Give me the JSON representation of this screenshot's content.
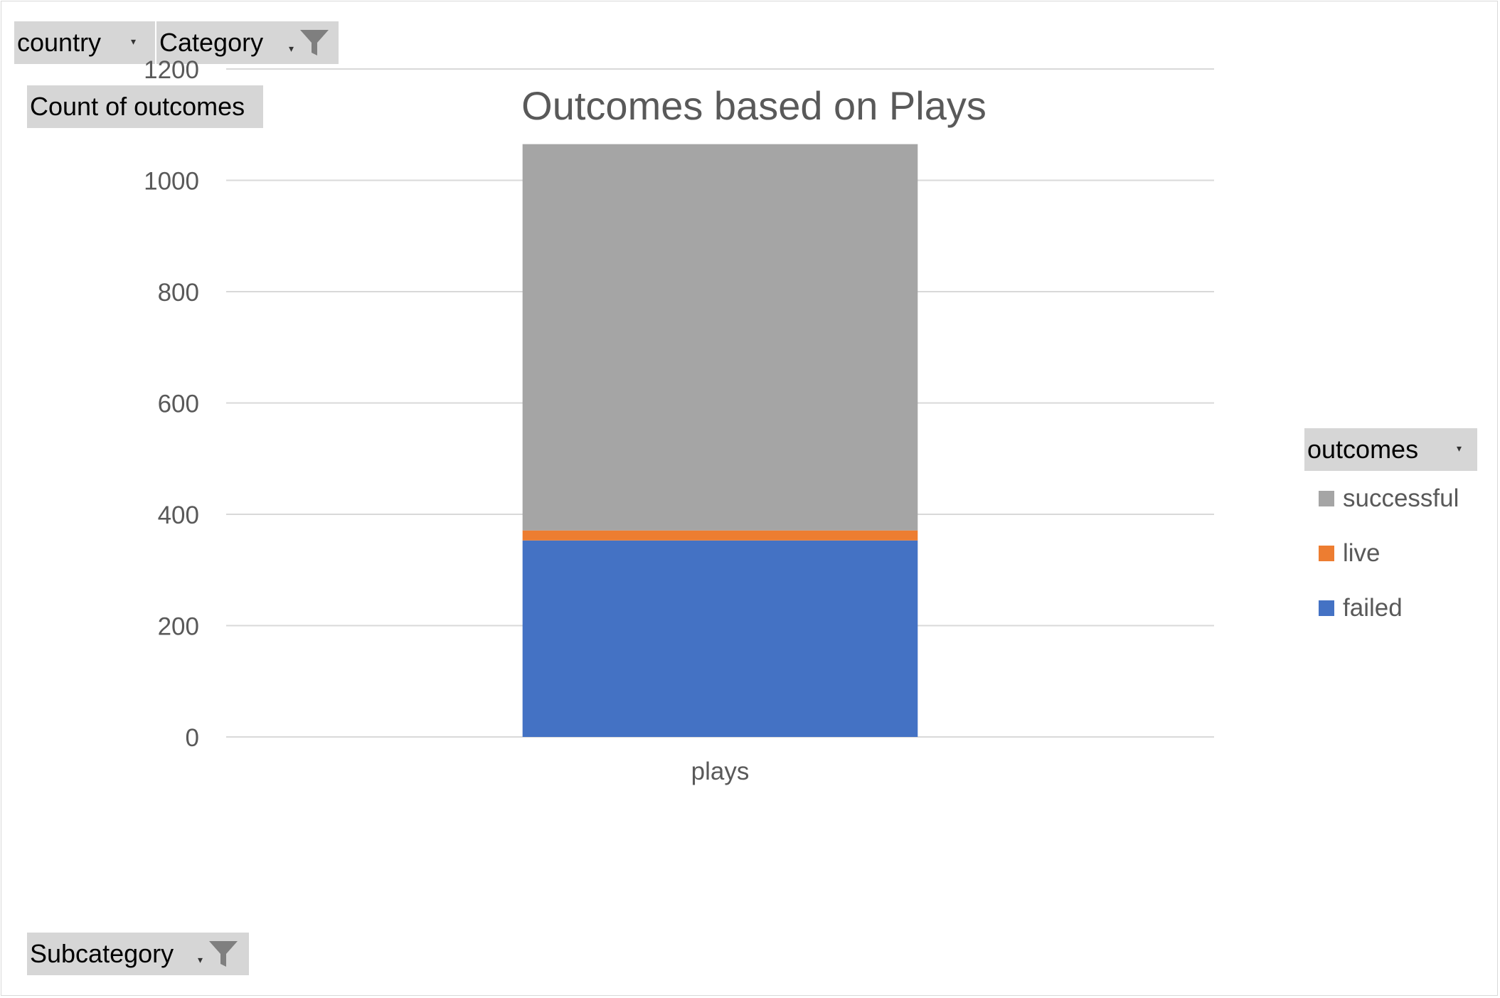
{
  "filters": {
    "country_label": "country",
    "category_label": "Category",
    "subcategory_label": "Subcategory"
  },
  "value_field_label": "Count of outcomes",
  "legend": {
    "title": "outcomes",
    "items": [
      {
        "label": "successful",
        "color": "#a5a5a5"
      },
      {
        "label": "live",
        "color": "#ed7d31"
      },
      {
        "label": "failed",
        "color": "#4472c4"
      }
    ]
  },
  "chart_data": {
    "type": "bar",
    "stacked": true,
    "title": "Outcomes based on Plays",
    "categories": [
      "plays"
    ],
    "series": [
      {
        "name": "failed",
        "values": [
          353
        ],
        "color": "#4472c4"
      },
      {
        "name": "live",
        "values": [
          18
        ],
        "color": "#ed7d31"
      },
      {
        "name": "successful",
        "values": [
          694
        ],
        "color": "#a5a5a5"
      }
    ],
    "ylim": [
      0,
      1200
    ],
    "yticks": [
      0,
      200,
      400,
      600,
      800,
      1000,
      1200
    ],
    "grid": true,
    "legend_position": "right"
  }
}
